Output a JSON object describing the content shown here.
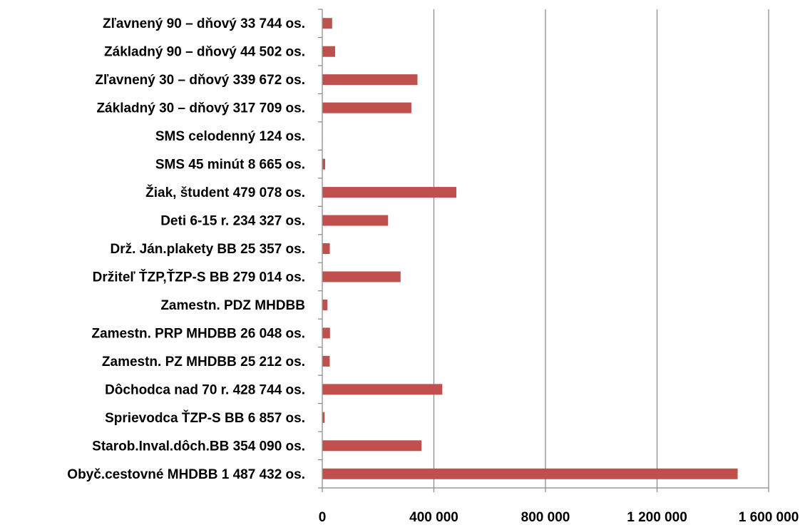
{
  "chart_data": {
    "type": "bar",
    "orientation": "horizontal",
    "title": "",
    "xlabel": "",
    "ylabel": "",
    "xlim": [
      0,
      1600000
    ],
    "grid": true,
    "legend": "none",
    "bar_color": "#C0504D",
    "grid_color": "#868686",
    "axis_color": "#868686",
    "categories": [
      "Zľavnený 90 – dňový  33 744 os.",
      "Základný 90 – dňový  44 502 os.",
      "Zľavnený 30 – dňový  339 672 os.",
      "Základný 30 – dňový  317 709 os.",
      "SMS celodenný  124 os.",
      "SMS 45 minút  8 665 os.",
      "Žiak, študent  479 078 os.",
      "Deti 6-15 r.  234 327 os.",
      "Drž. Ján.plakety BB  25 357 os.",
      "Držiteľ ŤZP,ŤZP-S BB 279 014 os.",
      "Zamestn. PDZ MHDBB",
      "Zamestn. PRP MHDBB  26 048 os.",
      "Zamestn. PZ MHDBB  25 212 os.",
      "Dôchodca nad 70 r.  428 744 os.",
      "Sprievodca ŤZP-S BB  6 857 os.",
      "Starob.Inval.dôch.BB  354 090 os.",
      "Obyč.cestovné MHDBB  1 487 432 os."
    ],
    "values": [
      33744,
      44502,
      339672,
      317709,
      124,
      8665,
      479078,
      234327,
      25357,
      279014,
      17000,
      26048,
      25212,
      428744,
      6857,
      354090,
      1487432
    ],
    "x_ticks": [
      0,
      400000,
      800000,
      1200000,
      1600000
    ],
    "x_tick_labels": [
      "0",
      "400 000",
      "800 000",
      "1 200 000",
      "1 600 000"
    ]
  }
}
